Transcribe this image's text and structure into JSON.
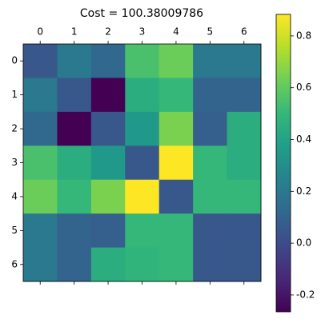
{
  "chart_data": {
    "type": "heatmap",
    "title": "Cost = 100.38009786",
    "xticks": [
      0,
      1,
      2,
      3,
      4,
      5,
      6
    ],
    "yticks": [
      0,
      1,
      2,
      3,
      4,
      5,
      6
    ],
    "values": [
      [
        0.05,
        0.2,
        0.12,
        0.55,
        0.62,
        0.2,
        0.2
      ],
      [
        0.2,
        0.05,
        -0.265,
        0.45,
        0.5,
        0.1,
        0.1
      ],
      [
        0.12,
        -0.265,
        0.05,
        0.35,
        0.65,
        0.08,
        0.45
      ],
      [
        0.55,
        0.45,
        0.35,
        0.05,
        0.883,
        0.5,
        0.45
      ],
      [
        0.62,
        0.5,
        0.65,
        0.883,
        0.05,
        0.5,
        0.5
      ],
      [
        0.2,
        0.1,
        0.08,
        0.5,
        0.5,
        0.05,
        0.05
      ],
      [
        0.2,
        0.1,
        0.45,
        0.48,
        0.5,
        0.05,
        0.05
      ]
    ],
    "colormap": "viridis",
    "clim": [
      -0.265,
      0.883
    ],
    "colorbar_ticks": [
      -0.2,
      {
        "value": 0,
        "label": "0.0"
      },
      0.2,
      0.4,
      0.6,
      0.8
    ]
  }
}
